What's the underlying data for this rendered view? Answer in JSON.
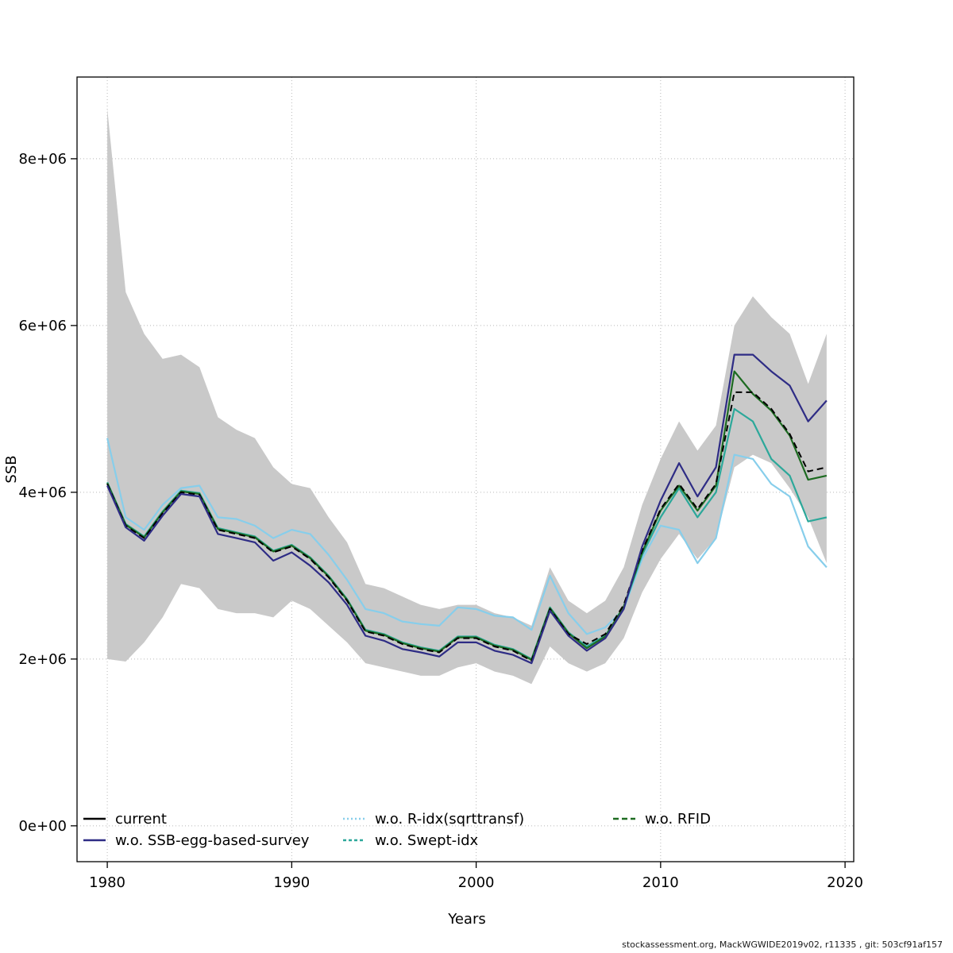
{
  "footer": "stockassessment.org, MackWGWIDE2019v02, r11335 , git: 503cf91af157",
  "chart_data": {
    "type": "line",
    "title": "",
    "xlabel": "Years",
    "ylabel": "SSB",
    "x_range": [
      1978.36,
      2020.47
    ],
    "y_range": [
      -430000,
      8980000
    ],
    "grid": true,
    "grid_color": "#b8b8b8",
    "legend_position": "bottom-inside",
    "x_ticks": [
      {
        "value": 1980,
        "label": "1980"
      },
      {
        "value": 1990,
        "label": "1990"
      },
      {
        "value": 2000,
        "label": "2000"
      },
      {
        "value": 2010,
        "label": "2010"
      },
      {
        "value": 2020,
        "label": "2020"
      }
    ],
    "y_ticks": [
      {
        "value": 0,
        "label": "0e+00"
      },
      {
        "value": 2000000,
        "label": "2e+06"
      },
      {
        "value": 4000000,
        "label": "4e+06"
      },
      {
        "value": 6000000,
        "label": "6e+06"
      },
      {
        "value": 8000000,
        "label": "8e+06"
      }
    ],
    "x": [
      1980,
      1981,
      1982,
      1983,
      1984,
      1985,
      1986,
      1987,
      1988,
      1989,
      1990,
      1991,
      1992,
      1993,
      1994,
      1995,
      1996,
      1997,
      1998,
      1999,
      2000,
      2001,
      2002,
      2003,
      2004,
      2005,
      2006,
      2007,
      2008,
      2009,
      2010,
      2011,
      2012,
      2013,
      2014,
      2015,
      2016,
      2017,
      2018,
      2019
    ],
    "band": {
      "name": "current-confidence-interval",
      "color": "#c9c9c9",
      "upper": [
        8600000,
        6400000,
        5900000,
        5600000,
        5650000,
        5500000,
        4900000,
        4750000,
        4650000,
        4300000,
        4100000,
        4050000,
        3700000,
        3400000,
        2900000,
        2850000,
        2750000,
        2650000,
        2600000,
        2650000,
        2650000,
        2550000,
        2500000,
        2400000,
        3100000,
        2700000,
        2550000,
        2700000,
        3100000,
        3850000,
        4400000,
        4850000,
        4500000,
        4800000,
        6000000,
        6350000,
        6100000,
        5900000,
        5300000,
        5900000
      ],
      "lower": [
        2000000,
        1970000,
        2200000,
        2500000,
        2900000,
        2850000,
        2600000,
        2550000,
        2550000,
        2500000,
        2700000,
        2600000,
        2400000,
        2200000,
        1950000,
        1900000,
        1850000,
        1800000,
        1800000,
        1900000,
        1950000,
        1850000,
        1800000,
        1700000,
        2150000,
        1950000,
        1850000,
        1950000,
        2250000,
        2800000,
        3200000,
        3500000,
        3200000,
        3450000,
        4300000,
        4450000,
        4350000,
        4050000,
        3700000,
        3150000
      ]
    },
    "series": [
      {
        "name": "current",
        "color": "#000000",
        "dash": "8,5",
        "legend_dash": "",
        "width": 2,
        "values": [
          4100000,
          3600000,
          3450000,
          3750000,
          4000000,
          3970000,
          3550000,
          3500000,
          3450000,
          3280000,
          3350000,
          3200000,
          2980000,
          2700000,
          2330000,
          2280000,
          2180000,
          2120000,
          2080000,
          2250000,
          2250000,
          2150000,
          2100000,
          1980000,
          2600000,
          2300000,
          2180000,
          2300000,
          2650000,
          3300000,
          3800000,
          4100000,
          3800000,
          4100000,
          5200000,
          5200000,
          5000000,
          4700000,
          4250000,
          4300000
        ]
      },
      {
        "name": "w.o. SSB-egg-based-survey",
        "color": "#2e2c85",
        "dash": "",
        "legend_dash": "",
        "width": 2.2,
        "values": [
          4080000,
          3580000,
          3420000,
          3720000,
          3980000,
          3950000,
          3500000,
          3450000,
          3400000,
          3180000,
          3280000,
          3120000,
          2920000,
          2650000,
          2280000,
          2220000,
          2120000,
          2080000,
          2030000,
          2200000,
          2200000,
          2100000,
          2050000,
          1950000,
          2580000,
          2280000,
          2100000,
          2250000,
          2600000,
          3350000,
          3900000,
          4350000,
          3950000,
          4300000,
          5650000,
          5650000,
          5450000,
          5280000,
          4850000,
          5100000
        ]
      },
      {
        "name": "w.o. R-idx(sqrttransf)",
        "color": "#87ceeb",
        "dash": "",
        "legend_dash": "2,3",
        "width": 2.2,
        "values": [
          4650000,
          3700000,
          3550000,
          3850000,
          4050000,
          4080000,
          3700000,
          3680000,
          3600000,
          3450000,
          3550000,
          3500000,
          3250000,
          2950000,
          2600000,
          2550000,
          2450000,
          2420000,
          2400000,
          2620000,
          2600000,
          2520000,
          2500000,
          2350000,
          3000000,
          2550000,
          2300000,
          2380000,
          2600000,
          3200000,
          3600000,
          3550000,
          3150000,
          3450000,
          4450000,
          4400000,
          4100000,
          3950000,
          3350000,
          3100000
        ]
      },
      {
        "name": "w.o. Swept-idx",
        "color": "#2ca89a",
        "dash": "",
        "legend_dash": "4,3",
        "width": 2.2,
        "values": [
          4120000,
          3620000,
          3470000,
          3770000,
          4020000,
          3990000,
          3570000,
          3520000,
          3470000,
          3300000,
          3370000,
          3220000,
          3000000,
          2720000,
          2350000,
          2300000,
          2200000,
          2140000,
          2100000,
          2270000,
          2270000,
          2170000,
          2120000,
          2000000,
          2620000,
          2320000,
          2150000,
          2280000,
          2620000,
          3250000,
          3700000,
          4050000,
          3700000,
          4000000,
          5000000,
          4850000,
          4400000,
          4200000,
          3650000,
          3700000
        ]
      },
      {
        "name": "w.o. RFID",
        "color": "#1d6b21",
        "dash": "",
        "legend_dash": "7,4",
        "width": 2.2,
        "values": [
          4110000,
          3610000,
          3460000,
          3760000,
          4010000,
          3980000,
          3560000,
          3510000,
          3460000,
          3290000,
          3360000,
          3210000,
          2990000,
          2710000,
          2340000,
          2290000,
          2190000,
          2130000,
          2090000,
          2260000,
          2260000,
          2160000,
          2110000,
          1990000,
          2610000,
          2310000,
          2130000,
          2270000,
          2630000,
          3280000,
          3780000,
          4080000,
          3780000,
          4080000,
          5450000,
          5180000,
          4980000,
          4680000,
          4150000,
          4200000
        ]
      }
    ]
  }
}
